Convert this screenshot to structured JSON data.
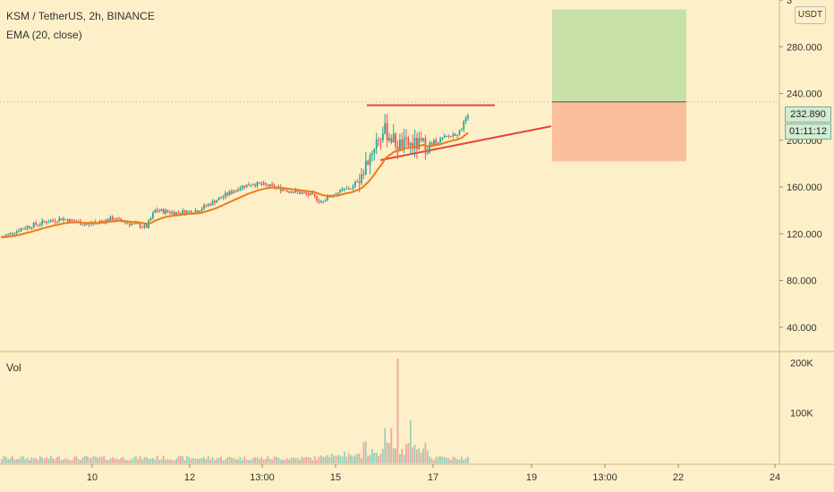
{
  "header": {
    "title": "KSM / TetherUS, 2h, BINANCE",
    "indicator": "EMA (20, close)",
    "volume_label": "Vol",
    "currency": "USDT"
  },
  "last_price_tag": "232.890",
  "countdown_tag": "01:11:12",
  "colors": {
    "background": "#fdf0c8",
    "up": "#26a69a",
    "down": "#ef5350",
    "ema": "#ef7a1a",
    "trendline": "#e8433c",
    "target_zone": "#c8e1a8",
    "stop_zone": "#fbbf9b"
  },
  "chart_data": [
    {
      "type": "candlestick",
      "title": "KSM / TetherUS, 2h, BINANCE",
      "series": [
        {
          "name": "EMA (20, close)"
        }
      ],
      "ylim": [
        20,
        320
      ],
      "y_ticks": [
        "40.000",
        "80.000",
        "120.000",
        "160.000",
        "200.000",
        "240.000",
        "280.000",
        "3"
      ],
      "x_ticks": [
        "10",
        "12",
        "13:00",
        "15",
        "17",
        "19",
        "13:00",
        "22",
        "24"
      ],
      "last_price": 232.89,
      "price_axis_highlight": "232.890",
      "countdown": "01:11:12",
      "annotations": [
        {
          "kind": "horizontal resistance line",
          "value": 230
        },
        {
          "kind": "rising support trendline",
          "from_value": 183,
          "to_value": 212
        },
        {
          "kind": "long position target zone",
          "from": 232.89,
          "to": 312
        },
        {
          "kind": "long position stop zone",
          "from": 182,
          "to": 232.89
        }
      ],
      "note": "candles and EMA drawn from this generated approximate price path",
      "candles_approx": {
        "anchors": [
          [
            0,
            117
          ],
          [
            10,
            125
          ],
          [
            20,
            130
          ],
          [
            28,
            133
          ],
          [
            40,
            128
          ],
          [
            52,
            133
          ],
          [
            62,
            128
          ],
          [
            68,
            126
          ],
          [
            72,
            140
          ],
          [
            82,
            138
          ],
          [
            92,
            140
          ],
          [
            100,
            148
          ],
          [
            112,
            160
          ],
          [
            118,
            163
          ],
          [
            125,
            161
          ],
          [
            135,
            157
          ],
          [
            145,
            153
          ],
          [
            150,
            148
          ],
          [
            155,
            153
          ],
          [
            160,
            157
          ],
          [
            165,
            160
          ],
          [
            170,
            175
          ],
          [
            176,
            200
          ],
          [
            180,
            208
          ],
          [
            186,
            196
          ],
          [
            192,
            196
          ],
          [
            200,
            196
          ],
          [
            208,
            202
          ],
          [
            215,
            207
          ],
          [
            219,
            223
          ]
        ]
      }
    },
    {
      "type": "bar",
      "title": "Vol",
      "ylim": [
        0,
        220000
      ],
      "y_ticks": [
        "100K",
        "200K"
      ],
      "x_ticks": [
        "10",
        "12",
        "13:00",
        "15",
        "17",
        "19",
        "13:00",
        "22",
        "24"
      ]
    }
  ]
}
